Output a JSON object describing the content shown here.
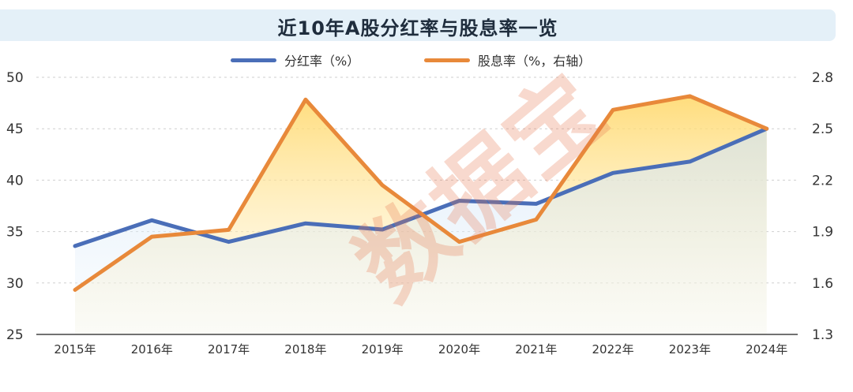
{
  "title": "近10年A股分红率与股息率一览",
  "watermark": "数据宝",
  "legend": [
    {
      "label": "分红率（%）",
      "color": "#4a6eb8"
    },
    {
      "label": "股息率（%，右轴）",
      "color": "#e8893a"
    }
  ],
  "colors": {
    "series1": "#4a6eb8",
    "series2": "#e8893a",
    "grid": "#cfcfcf",
    "axis": "#444444"
  },
  "chart_data": {
    "type": "line",
    "categories": [
      "2015年",
      "2016年",
      "2017年",
      "2018年",
      "2019年",
      "2020年",
      "2021年",
      "2022年",
      "2023年",
      "2024年"
    ],
    "series": [
      {
        "name": "分红率（%）",
        "axis": "left",
        "values": [
          33.6,
          36.1,
          34.0,
          35.8,
          35.2,
          38.0,
          37.7,
          40.7,
          41.8,
          45.0
        ]
      },
      {
        "name": "股息率（%，右轴）",
        "axis": "right",
        "values": [
          1.56,
          1.87,
          1.91,
          2.67,
          2.17,
          1.84,
          1.97,
          2.61,
          2.69,
          2.5
        ]
      }
    ],
    "left_axis": {
      "ylim": [
        25,
        50
      ],
      "ticks": [
        25,
        30,
        35,
        40,
        45,
        50
      ]
    },
    "right_axis": {
      "ylim": [
        1.3,
        2.8
      ],
      "ticks": [
        "1.3",
        "1.6",
        "1.9",
        "2.2",
        "2.5",
        "2.8"
      ]
    },
    "grid": true,
    "legend_position": "top-center"
  }
}
